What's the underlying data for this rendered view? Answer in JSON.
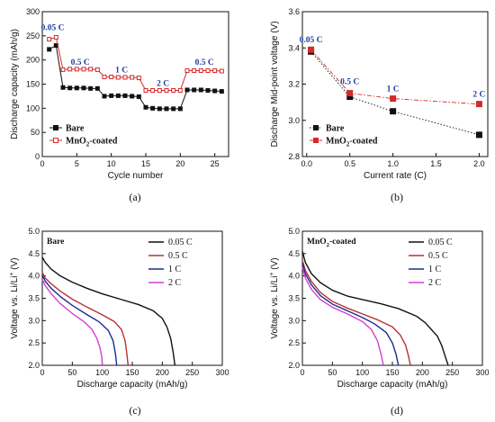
{
  "chart_data": [
    {
      "id": "a",
      "panel_label": "(a)",
      "type": "scatter",
      "xlabel": "Cycle  number",
      "ylabel": "Discharge capacity (mAh/g)",
      "xlim": [
        0,
        27
      ],
      "ylim": [
        0,
        300
      ],
      "xticks": [
        0,
        5,
        10,
        15,
        20,
        25
      ],
      "yticks": [
        0,
        50,
        100,
        150,
        200,
        250,
        300
      ],
      "legend": "bottom-left",
      "series": [
        {
          "name": "Bare",
          "color": "#111111",
          "marker": "filled-square",
          "x": [
            1,
            2,
            3,
            4,
            5,
            6,
            7,
            8,
            9,
            10,
            11,
            12,
            13,
            14,
            15,
            16,
            17,
            18,
            19,
            20,
            21,
            22,
            23,
            24,
            25,
            26
          ],
          "y": [
            222,
            230,
            143,
            142,
            142,
            142,
            141,
            141,
            125,
            126,
            126,
            126,
            125,
            124,
            102,
            100,
            99,
            99,
            99,
            99,
            138,
            138,
            138,
            137,
            136,
            135
          ]
        },
        {
          "name": "MnO₂-coated",
          "color": "#d42a2a",
          "marker": "open-square",
          "x": [
            1,
            2,
            3,
            4,
            5,
            6,
            7,
            8,
            9,
            10,
            11,
            12,
            13,
            14,
            15,
            16,
            17,
            18,
            19,
            20,
            21,
            22,
            23,
            24,
            25,
            26
          ],
          "y": [
            243,
            247,
            180,
            181,
            181,
            181,
            181,
            180,
            165,
            165,
            164,
            164,
            164,
            163,
            137,
            137,
            137,
            137,
            137,
            137,
            178,
            178,
            178,
            178,
            178,
            177
          ]
        }
      ],
      "annotations": [
        {
          "text": "0.05 C",
          "x": 1.5,
          "y": 262
        },
        {
          "text": "0.5 C",
          "x": 5.5,
          "y": 190
        },
        {
          "text": "1 C",
          "x": 11.5,
          "y": 174
        },
        {
          "text": "2 C",
          "x": 17.5,
          "y": 146
        },
        {
          "text": "0.5 C",
          "x": 23.5,
          "y": 190
        }
      ]
    },
    {
      "id": "b",
      "panel_label": "(b)",
      "type": "line",
      "xlabel": "Current rate (C)",
      "ylabel": "Discharge Mid-point voltage  (V)",
      "xlim": [
        -0.05,
        2.1
      ],
      "ylim": [
        2.8,
        3.6
      ],
      "xticks": [
        0.0,
        0.5,
        1.0,
        1.5,
        2.0
      ],
      "xtick_labels": [
        "0.0",
        "0.5",
        "1.0",
        "1.5",
        "2.0"
      ],
      "yticks": [
        2.8,
        3.0,
        3.2,
        3.4,
        3.6
      ],
      "ytick_labels": [
        "2.8",
        "3.0",
        "3.2",
        "3.4",
        "3.6"
      ],
      "legend": "bottom-left",
      "series": [
        {
          "name": "Bare",
          "color": "#111111",
          "marker": "filled-square",
          "line": "dotted",
          "x": [
            0.05,
            0.5,
            1.0,
            2.0
          ],
          "y": [
            3.38,
            3.13,
            3.05,
            2.92
          ]
        },
        {
          "name": "MnO₂-coated",
          "color": "#d42a2a",
          "marker": "filled-square",
          "line": "dashdot",
          "x": [
            0.05,
            0.5,
            1.0,
            2.0
          ],
          "y": [
            3.39,
            3.15,
            3.12,
            3.09
          ]
        }
      ],
      "annotations": [
        {
          "text": "0.05 C",
          "x": 0.05,
          "y": 3.43
        },
        {
          "text": "0.5 C",
          "x": 0.5,
          "y": 3.2
        },
        {
          "text": "1 C",
          "x": 1.0,
          "y": 3.16
        },
        {
          "text": "2 C",
          "x": 2.0,
          "y": 3.13
        }
      ]
    },
    {
      "id": "c",
      "panel_label": "(c)",
      "type": "line",
      "title": "Bare",
      "xlabel": "Discharge capacity (mAh/g)",
      "ylabel": "Voltage vs. Li/Li⁺ (V)",
      "xlim": [
        0,
        300
      ],
      "ylim": [
        2.0,
        5.0
      ],
      "xticks": [
        0,
        50,
        100,
        150,
        200,
        250,
        300
      ],
      "yticks": [
        2.0,
        2.5,
        3.0,
        3.5,
        4.0,
        4.5,
        5.0
      ],
      "ytick_labels": [
        "2.0",
        "2.5",
        "3.0",
        "3.5",
        "4.0",
        "4.5",
        "5.0"
      ],
      "legend": "top-right",
      "series": [
        {
          "name": "0.05 C",
          "color": "#111111",
          "x": [
            0,
            5,
            15,
            30,
            50,
            75,
            100,
            130,
            160,
            185,
            200,
            208,
            214,
            218,
            221
          ],
          "y": [
            4.42,
            4.3,
            4.15,
            4.0,
            3.86,
            3.72,
            3.6,
            3.48,
            3.36,
            3.22,
            3.05,
            2.85,
            2.6,
            2.3,
            2.0
          ]
        },
        {
          "name": "0.5 C",
          "color": "#b83232",
          "x": [
            0,
            5,
            15,
            30,
            50,
            75,
            100,
            120,
            132,
            138,
            141,
            143
          ],
          "y": [
            4.08,
            3.95,
            3.82,
            3.66,
            3.48,
            3.3,
            3.13,
            2.98,
            2.8,
            2.55,
            2.25,
            2.0
          ]
        },
        {
          "name": "1 C",
          "color": "#1a2b8f",
          "x": [
            0,
            5,
            15,
            30,
            50,
            75,
            95,
            110,
            118,
            122,
            124
          ],
          "y": [
            4.02,
            3.88,
            3.72,
            3.54,
            3.34,
            3.13,
            2.97,
            2.78,
            2.55,
            2.25,
            2.0
          ]
        },
        {
          "name": "2 C",
          "color": "#d43fd4",
          "x": [
            0,
            5,
            15,
            30,
            50,
            70,
            83,
            91,
            96,
            99,
            100
          ],
          "y": [
            3.92,
            3.78,
            3.6,
            3.38,
            3.16,
            2.97,
            2.8,
            2.6,
            2.4,
            2.2,
            2.0
          ]
        }
      ]
    },
    {
      "id": "d",
      "panel_label": "(d)",
      "type": "line",
      "title": "MnO₂-coated",
      "xlabel": "Discharge capacity (mAh/g)",
      "ylabel": "Voltage vs. Li/Li⁺ (V)",
      "xlim": [
        0,
        300
      ],
      "ylim": [
        2.0,
        5.0
      ],
      "xticks": [
        0,
        50,
        100,
        150,
        200,
        250,
        300
      ],
      "yticks": [
        2.0,
        2.5,
        3.0,
        3.5,
        4.0,
        4.5,
        5.0
      ],
      "ytick_labels": [
        "2.0",
        "2.5",
        "3.0",
        "3.5",
        "4.0",
        "4.5",
        "5.0"
      ],
      "legend": "top-right",
      "series": [
        {
          "name": "0.05 C",
          "color": "#111111",
          "x": [
            0,
            5,
            15,
            30,
            50,
            75,
            100,
            130,
            160,
            190,
            205,
            215,
            225,
            232,
            238,
            243
          ],
          "y": [
            4.55,
            4.3,
            4.05,
            3.85,
            3.68,
            3.55,
            3.47,
            3.38,
            3.27,
            3.1,
            2.95,
            2.8,
            2.65,
            2.45,
            2.2,
            2.0
          ]
        },
        {
          "name": "0.5 C",
          "color": "#b83232",
          "x": [
            0,
            5,
            15,
            30,
            50,
            75,
            100,
            125,
            150,
            163,
            172,
            177,
            180
          ],
          "y": [
            4.35,
            4.12,
            3.88,
            3.63,
            3.43,
            3.28,
            3.15,
            3.02,
            2.86,
            2.68,
            2.45,
            2.2,
            2.0
          ]
        },
        {
          "name": "1 C",
          "color": "#1a2b8f",
          "x": [
            0,
            5,
            15,
            30,
            50,
            75,
            100,
            120,
            140,
            150,
            156,
            160
          ],
          "y": [
            4.28,
            4.05,
            3.8,
            3.56,
            3.37,
            3.22,
            3.07,
            2.93,
            2.73,
            2.5,
            2.25,
            2.0
          ]
        },
        {
          "name": "2 C",
          "color": "#d43fd4",
          "x": [
            0,
            5,
            15,
            30,
            50,
            75,
            100,
            115,
            125,
            131,
            135
          ],
          "y": [
            4.2,
            3.95,
            3.7,
            3.47,
            3.3,
            3.15,
            2.98,
            2.8,
            2.55,
            2.25,
            2.0
          ]
        }
      ]
    }
  ]
}
